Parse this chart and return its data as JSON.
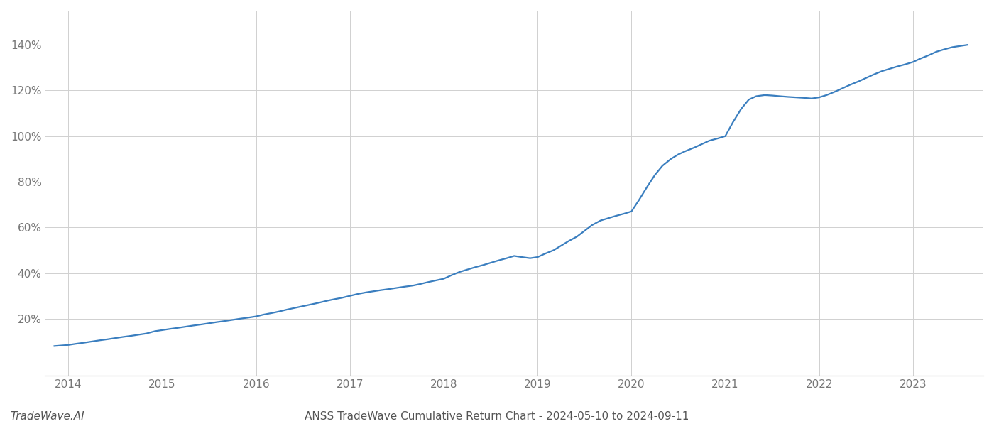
{
  "title": "ANSS TradeWave Cumulative Return Chart - 2024-05-10 to 2024-09-11",
  "watermark": "TradeWave.AI",
  "line_color": "#3a7ebf",
  "background_color": "#ffffff",
  "grid_color": "#d0d0d0",
  "x_years": [
    2014,
    2015,
    2016,
    2017,
    2018,
    2019,
    2020,
    2021,
    2022,
    2023
  ],
  "data_x": [
    2013.85,
    2014.0,
    2014.08,
    2014.17,
    2014.25,
    2014.33,
    2014.42,
    2014.5,
    2014.58,
    2014.67,
    2014.75,
    2014.83,
    2014.92,
    2015.0,
    2015.08,
    2015.17,
    2015.25,
    2015.33,
    2015.42,
    2015.5,
    2015.58,
    2015.67,
    2015.75,
    2015.83,
    2015.92,
    2016.0,
    2016.08,
    2016.17,
    2016.25,
    2016.33,
    2016.42,
    2016.5,
    2016.58,
    2016.67,
    2016.75,
    2016.83,
    2016.92,
    2017.0,
    2017.08,
    2017.17,
    2017.25,
    2017.33,
    2017.42,
    2017.5,
    2017.58,
    2017.67,
    2017.75,
    2017.83,
    2017.92,
    2018.0,
    2018.08,
    2018.17,
    2018.25,
    2018.33,
    2018.42,
    2018.5,
    2018.58,
    2018.67,
    2018.75,
    2018.83,
    2018.92,
    2019.0,
    2019.08,
    2019.17,
    2019.25,
    2019.33,
    2019.42,
    2019.5,
    2019.58,
    2019.67,
    2019.75,
    2019.83,
    2019.92,
    2020.0,
    2020.08,
    2020.17,
    2020.25,
    2020.33,
    2020.42,
    2020.5,
    2020.58,
    2020.67,
    2020.75,
    2020.83,
    2020.92,
    2021.0,
    2021.08,
    2021.17,
    2021.25,
    2021.33,
    2021.42,
    2021.5,
    2021.58,
    2021.67,
    2021.75,
    2021.83,
    2021.92,
    2022.0,
    2022.08,
    2022.17,
    2022.25,
    2022.33,
    2022.42,
    2022.5,
    2022.58,
    2022.67,
    2022.75,
    2022.83,
    2022.92,
    2023.0,
    2023.08,
    2023.17,
    2023.25,
    2023.33,
    2023.42,
    2023.5,
    2023.58
  ],
  "data_y": [
    8.0,
    8.5,
    9.0,
    9.5,
    10.0,
    10.5,
    11.0,
    11.5,
    12.0,
    12.5,
    13.0,
    13.5,
    14.5,
    15.0,
    15.5,
    16.0,
    16.5,
    17.0,
    17.5,
    18.0,
    18.5,
    19.0,
    19.5,
    20.0,
    20.5,
    21.0,
    21.8,
    22.5,
    23.2,
    24.0,
    24.8,
    25.5,
    26.2,
    27.0,
    27.8,
    28.5,
    29.2,
    30.0,
    30.8,
    31.5,
    32.0,
    32.5,
    33.0,
    33.5,
    34.0,
    34.5,
    35.2,
    36.0,
    36.8,
    37.5,
    39.0,
    40.5,
    41.5,
    42.5,
    43.5,
    44.5,
    45.5,
    46.5,
    47.5,
    47.0,
    46.5,
    47.0,
    48.5,
    50.0,
    52.0,
    54.0,
    56.0,
    58.5,
    61.0,
    63.0,
    64.0,
    65.0,
    66.0,
    67.0,
    72.0,
    78.0,
    83.0,
    87.0,
    90.0,
    92.0,
    93.5,
    95.0,
    96.5,
    98.0,
    99.0,
    100.0,
    106.0,
    112.0,
    116.0,
    117.5,
    118.0,
    117.8,
    117.5,
    117.2,
    117.0,
    116.8,
    116.5,
    117.0,
    118.0,
    119.5,
    121.0,
    122.5,
    124.0,
    125.5,
    127.0,
    128.5,
    129.5,
    130.5,
    131.5,
    132.5,
    134.0,
    135.5,
    137.0,
    138.0,
    139.0,
    139.5,
    140.0
  ],
  "ylim": [
    -5,
    155
  ],
  "yticks": [
    20,
    40,
    60,
    80,
    100,
    120,
    140
  ],
  "xlim": [
    2013.75,
    2023.75
  ],
  "line_width": 1.6,
  "title_fontsize": 11,
  "tick_fontsize": 11,
  "watermark_fontsize": 11,
  "axis_color": "#888888",
  "tick_color": "#777777"
}
